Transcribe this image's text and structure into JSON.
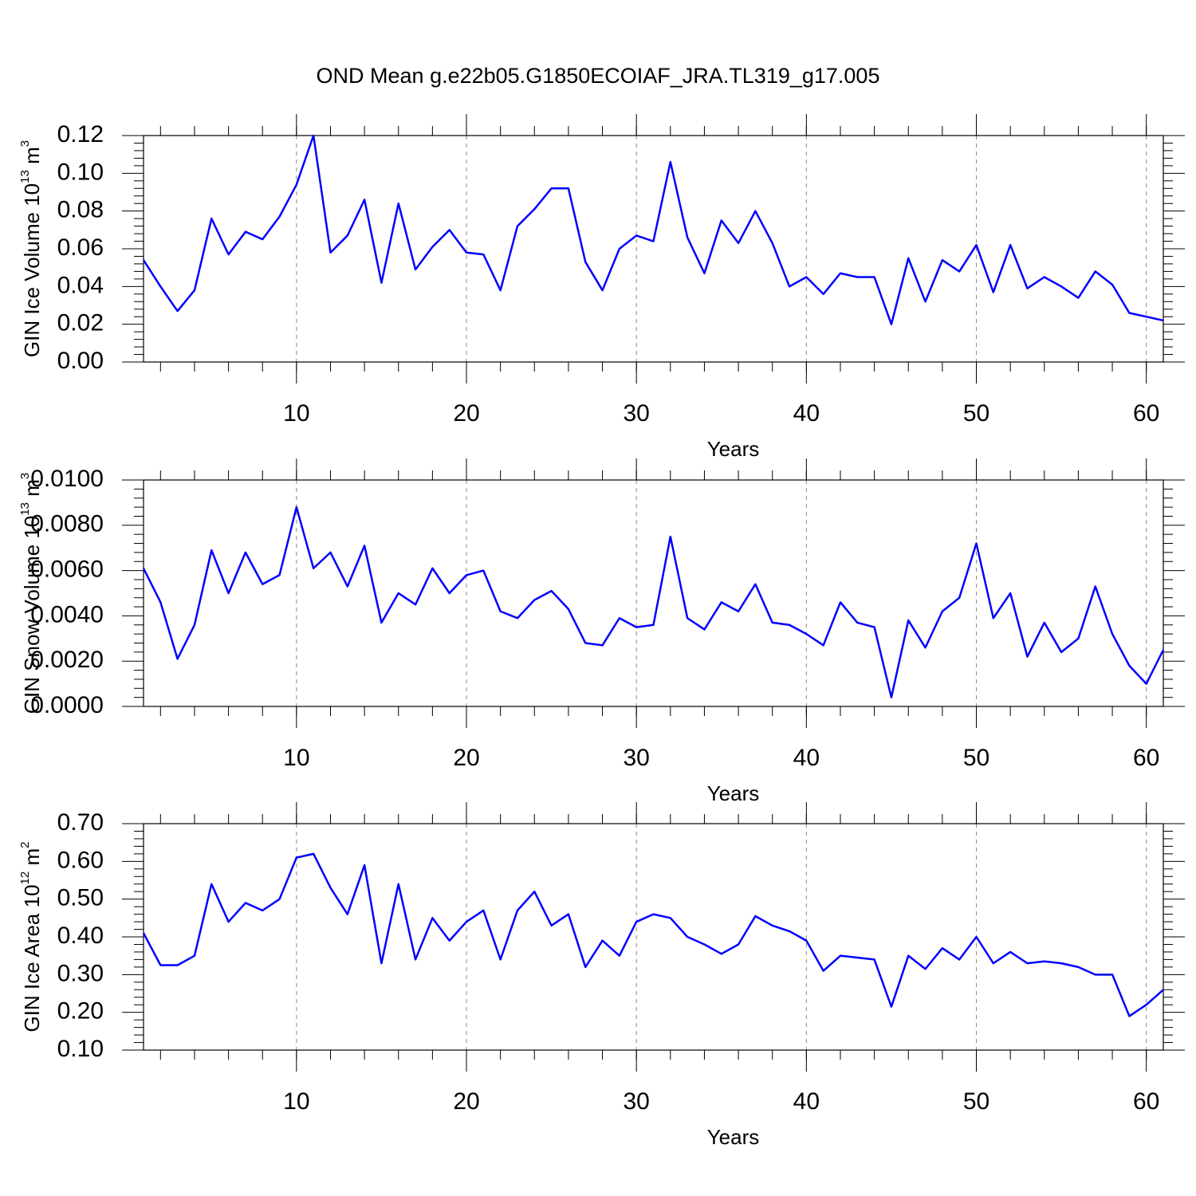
{
  "title": "OND Mean g.e22b05.G1850ECOIAF_JRA.TL319_g17.005",
  "chart_data": [
    {
      "type": "line",
      "ylabel": [
        "GIN Ice Volume 10",
        "13",
        " m",
        "3"
      ],
      "xlabel": "Years",
      "x": [
        1,
        2,
        3,
        4,
        5,
        6,
        7,
        8,
        9,
        10,
        11,
        12,
        13,
        14,
        15,
        16,
        17,
        18,
        19,
        20,
        21,
        22,
        23,
        24,
        25,
        26,
        27,
        28,
        29,
        30,
        31,
        32,
        33,
        34,
        35,
        36,
        37,
        38,
        39,
        40,
        41,
        42,
        43,
        44,
        45,
        46,
        47,
        48,
        49,
        50,
        51,
        52,
        53,
        54,
        55,
        56,
        57,
        58,
        59,
        60,
        61
      ],
      "series": [
        {
          "color": "#0000ff",
          "values": [
            0.054,
            0.04,
            0.027,
            0.038,
            0.076,
            0.057,
            0.069,
            0.065,
            0.077,
            0.094,
            0.12,
            0.058,
            0.067,
            0.086,
            0.042,
            0.084,
            0.049,
            0.061,
            0.07,
            0.058,
            0.057,
            0.038,
            0.072,
            0.081,
            0.092,
            0.092,
            0.053,
            0.038,
            0.06,
            0.067,
            0.064,
            0.106,
            0.066,
            0.047,
            0.075,
            0.063,
            0.08,
            0.063,
            0.04,
            0.045,
            0.036,
            0.047,
            0.045,
            0.045,
            0.02,
            0.055,
            0.032,
            0.054,
            0.048,
            0.062,
            0.037,
            0.062,
            0.039,
            0.045,
            0.04,
            0.034,
            0.048,
            0.041,
            0.026,
            0.024,
            0.022
          ]
        }
      ],
      "xlim": [
        1,
        61
      ],
      "xticks": [
        10,
        20,
        30,
        40,
        50,
        60
      ],
      "ylim": [
        0,
        0.12
      ],
      "yticks": [
        {
          "value": 0,
          "label": "0.00"
        },
        {
          "value": 0.02,
          "label": "0.02"
        },
        {
          "value": 0.04,
          "label": "0.04"
        },
        {
          "value": 0.06,
          "label": "0.06"
        },
        {
          "value": 0.08,
          "label": "0.08"
        },
        {
          "value": 0.1,
          "label": "0.10"
        },
        {
          "value": 0.12,
          "label": "0.12"
        }
      ],
      "grid": "x"
    },
    {
      "type": "line",
      "ylabel": [
        "GIN Snow Volume 10",
        "13",
        " m",
        "3"
      ],
      "xlabel": "Years",
      "x": [
        1,
        2,
        3,
        4,
        5,
        6,
        7,
        8,
        9,
        10,
        11,
        12,
        13,
        14,
        15,
        16,
        17,
        18,
        19,
        20,
        21,
        22,
        23,
        24,
        25,
        26,
        27,
        28,
        29,
        30,
        31,
        32,
        33,
        34,
        35,
        36,
        37,
        38,
        39,
        40,
        41,
        42,
        43,
        44,
        45,
        46,
        47,
        48,
        49,
        50,
        51,
        52,
        53,
        54,
        55,
        56,
        57,
        58,
        59,
        60,
        61
      ],
      "series": [
        {
          "color": "#0000ff",
          "values": [
            0.0061,
            0.0046,
            0.0021,
            0.0036,
            0.0069,
            0.005,
            0.0068,
            0.0054,
            0.0058,
            0.0088,
            0.0061,
            0.0068,
            0.0053,
            0.0071,
            0.0037,
            0.005,
            0.0045,
            0.0061,
            0.005,
            0.0058,
            0.006,
            0.0042,
            0.0039,
            0.0047,
            0.0051,
            0.0043,
            0.0028,
            0.0027,
            0.0039,
            0.0035,
            0.0036,
            0.0075,
            0.0039,
            0.0034,
            0.0046,
            0.0042,
            0.0054,
            0.0037,
            0.0036,
            0.0032,
            0.0027,
            0.0046,
            0.0037,
            0.0035,
            0.0004,
            0.0038,
            0.0026,
            0.0042,
            0.0048,
            0.0072,
            0.0039,
            0.005,
            0.0022,
            0.0037,
            0.0024,
            0.003,
            0.0053,
            0.0032,
            0.0018,
            0.001,
            0.0025
          ]
        }
      ],
      "xlim": [
        1,
        61
      ],
      "xticks": [
        10,
        20,
        30,
        40,
        50,
        60
      ],
      "ylim": [
        0,
        0.01
      ],
      "yticks": [
        {
          "value": 0,
          "label": "0.0000"
        },
        {
          "value": 0.002,
          "label": "0.0020"
        },
        {
          "value": 0.004,
          "label": "0.0040"
        },
        {
          "value": 0.006,
          "label": "0.0060"
        },
        {
          "value": 0.008,
          "label": "0.0080"
        },
        {
          "value": 0.01,
          "label": "0.0100"
        }
      ],
      "grid": "x"
    },
    {
      "type": "line",
      "ylabel": [
        "GIN Ice Area 10",
        "12",
        " m",
        "2"
      ],
      "xlabel": "Years",
      "x": [
        1,
        2,
        3,
        4,
        5,
        6,
        7,
        8,
        9,
        10,
        11,
        12,
        13,
        14,
        15,
        16,
        17,
        18,
        19,
        20,
        21,
        22,
        23,
        24,
        25,
        26,
        27,
        28,
        29,
        30,
        31,
        32,
        33,
        34,
        35,
        36,
        37,
        38,
        39,
        40,
        41,
        42,
        43,
        44,
        45,
        46,
        47,
        48,
        49,
        50,
        51,
        52,
        53,
        54,
        55,
        56,
        57,
        58,
        59,
        60,
        61
      ],
      "series": [
        {
          "color": "#0000ff",
          "values": [
            0.41,
            0.325,
            0.325,
            0.35,
            0.54,
            0.44,
            0.49,
            0.47,
            0.5,
            0.61,
            0.62,
            0.53,
            0.46,
            0.59,
            0.33,
            0.54,
            0.34,
            0.45,
            0.39,
            0.44,
            0.47,
            0.34,
            0.47,
            0.52,
            0.43,
            0.46,
            0.32,
            0.39,
            0.35,
            0.44,
            0.46,
            0.45,
            0.4,
            0.38,
            0.355,
            0.38,
            0.455,
            0.43,
            0.415,
            0.39,
            0.31,
            0.35,
            0.345,
            0.34,
            0.215,
            0.35,
            0.315,
            0.37,
            0.34,
            0.4,
            0.33,
            0.36,
            0.33,
            0.335,
            0.33,
            0.32,
            0.3,
            0.3,
            0.19,
            0.22,
            0.26
          ]
        }
      ],
      "xlim": [
        1,
        61
      ],
      "xticks": [
        10,
        20,
        30,
        40,
        50,
        60
      ],
      "ylim": [
        0.1,
        0.7
      ],
      "yticks": [
        {
          "value": 0.1,
          "label": "0.10"
        },
        {
          "value": 0.2,
          "label": "0.20"
        },
        {
          "value": 0.3,
          "label": "0.30"
        },
        {
          "value": 0.4,
          "label": "0.40"
        },
        {
          "value": 0.5,
          "label": "0.50"
        },
        {
          "value": 0.6,
          "label": "0.60"
        },
        {
          "value": 0.7,
          "label": "0.70"
        }
      ],
      "grid": "x"
    }
  ]
}
